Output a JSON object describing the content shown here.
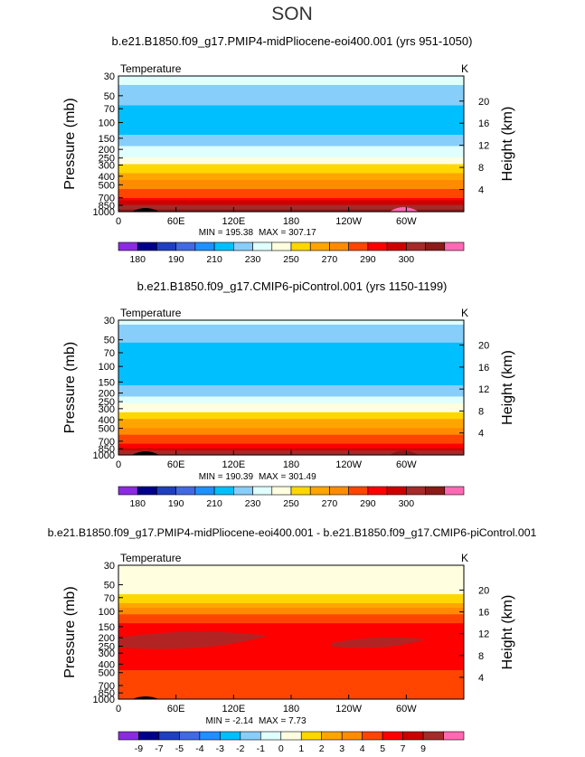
{
  "season": "SON",
  "chart_data": [
    {
      "type": "heatmap",
      "title": "b.e21.B1850.f09_g17.PMIP4-midPliocene-eoi400.001 (yrs 951-1050)",
      "variable": "Temperature",
      "units": "K",
      "ylabel_left": "Pressure (mb)",
      "ylabel_right": "Height (km)",
      "pressure_ticks": [
        30,
        50,
        70,
        100,
        150,
        200,
        250,
        300,
        400,
        500,
        700,
        850,
        1000
      ],
      "pressure_range": [
        30,
        1000
      ],
      "height_ticks": [
        4,
        8,
        12,
        16,
        20
      ],
      "x_ticks": [
        "0",
        "60E",
        "120E",
        "180",
        "120W",
        "60W"
      ],
      "x_range": [
        0,
        360
      ],
      "min_label": "MIN = 195.38",
      "max_label": "MAX = 307.17",
      "colorbar_labels": [
        "180",
        "190",
        "210",
        "230",
        "250",
        "270",
        "290",
        "300"
      ],
      "level_colors": [
        "#8a2be2",
        "#00008b",
        "#1f3fbf",
        "#4169e1",
        "#1e90ff",
        "#00bfff",
        "#87cefa",
        "#e0ffff",
        "#ffffe0",
        "#ffd700",
        "#ffa500",
        "#ff8c00",
        "#ff4500",
        "#ff0000",
        "#cd0000",
        "#a52a2a",
        "#8b1a1a",
        "#ff69b4"
      ],
      "profile": [
        {
          "p": 30,
          "T": 225
        },
        {
          "p": 50,
          "T": 215
        },
        {
          "p": 70,
          "T": 208
        },
        {
          "p": 100,
          "T": 205
        },
        {
          "p": 150,
          "T": 212
        },
        {
          "p": 200,
          "T": 222
        },
        {
          "p": 250,
          "T": 232
        },
        {
          "p": 300,
          "T": 240
        },
        {
          "p": 400,
          "T": 255
        },
        {
          "p": 500,
          "T": 265
        },
        {
          "p": 700,
          "T": 281
        },
        {
          "p": 850,
          "T": 291
        },
        {
          "p": 1000,
          "T": 299
        }
      ]
    },
    {
      "type": "heatmap",
      "title": "b.e21.B1850.f09_g17.CMIP6-piControl.001 (yrs 1150-1199)",
      "variable": "Temperature",
      "units": "K",
      "ylabel_left": "Pressure (mb)",
      "ylabel_right": "Height (km)",
      "pressure_ticks": [
        30,
        50,
        70,
        100,
        150,
        200,
        250,
        300,
        400,
        500,
        700,
        850,
        1000
      ],
      "pressure_range": [
        30,
        1000
      ],
      "height_ticks": [
        4,
        8,
        12,
        16,
        20
      ],
      "x_ticks": [
        "0",
        "60E",
        "120E",
        "180",
        "120W",
        "60W"
      ],
      "x_range": [
        0,
        360
      ],
      "min_label": "MIN = 190.39",
      "max_label": "MAX = 301.49",
      "colorbar_labels": [
        "180",
        "190",
        "210",
        "230",
        "250",
        "270",
        "290",
        "300"
      ],
      "level_colors": [
        "#8a2be2",
        "#00008b",
        "#1f3fbf",
        "#4169e1",
        "#1e90ff",
        "#00bfff",
        "#87cefa",
        "#e0ffff",
        "#ffffe0",
        "#ffd700",
        "#ffa500",
        "#ff8c00",
        "#ff4500",
        "#ff0000",
        "#cd0000",
        "#a52a2a",
        "#8b1a1a",
        "#ff69b4"
      ],
      "profile": [
        {
          "p": 30,
          "T": 222
        },
        {
          "p": 50,
          "T": 212
        },
        {
          "p": 70,
          "T": 205
        },
        {
          "p": 100,
          "T": 200
        },
        {
          "p": 150,
          "T": 207
        },
        {
          "p": 200,
          "T": 217
        },
        {
          "p": 250,
          "T": 227
        },
        {
          "p": 300,
          "T": 236
        },
        {
          "p": 400,
          "T": 250
        },
        {
          "p": 500,
          "T": 261
        },
        {
          "p": 700,
          "T": 277
        },
        {
          "p": 850,
          "T": 287
        },
        {
          "p": 1000,
          "T": 294
        }
      ]
    },
    {
      "type": "heatmap",
      "title": "b.e21.B1850.f09_g17.PMIP4-midPliocene-eoi400.001 - b.e21.B1850.f09_g17.CMIP6-piControl.001",
      "variable": "Temperature",
      "units": "K",
      "ylabel_left": "Pressure (mb)",
      "ylabel_right": "Height (km)",
      "pressure_ticks": [
        30,
        50,
        70,
        100,
        150,
        200,
        250,
        300,
        400,
        500,
        700,
        850,
        1000
      ],
      "pressure_range": [
        30,
        1000
      ],
      "height_ticks": [
        4,
        8,
        12,
        16,
        20
      ],
      "x_ticks": [
        "0",
        "60E",
        "120E",
        "180",
        "120W",
        "60W"
      ],
      "x_range": [
        0,
        360
      ],
      "min_label": "MIN = -2.14",
      "max_label": "MAX = 7.73",
      "colorbar_labels": [
        "-9",
        "-7",
        "-5",
        "-4",
        "-3",
        "-2",
        "-1",
        "0",
        "1",
        "2",
        "3",
        "4",
        "5",
        "7",
        "9"
      ],
      "level_colors": [
        "#8a2be2",
        "#00008b",
        "#1f3fbf",
        "#4169e1",
        "#1e90ff",
        "#00bfff",
        "#87cefa",
        "#e0ffff",
        "#ffffe0",
        "#ffd700",
        "#ffa500",
        "#ff8c00",
        "#ff4500",
        "#ff0000",
        "#cd0000",
        "#a52a2a",
        "#ff69b4"
      ],
      "profile": [
        {
          "p": 30,
          "T": 0.5
        },
        {
          "p": 50,
          "T": 0.2
        },
        {
          "p": 70,
          "T": 1.2
        },
        {
          "p": 100,
          "T": 3.5
        },
        {
          "p": 150,
          "T": 5.4
        },
        {
          "p": 200,
          "T": 6.0
        },
        {
          "p": 250,
          "T": 6.0
        },
        {
          "p": 300,
          "T": 5.6
        },
        {
          "p": 400,
          "T": 5.3
        },
        {
          "p": 500,
          "T": 4.8
        },
        {
          "p": 700,
          "T": 4.4
        },
        {
          "p": 850,
          "T": 4.5
        },
        {
          "p": 1000,
          "T": 4.2
        }
      ]
    }
  ]
}
